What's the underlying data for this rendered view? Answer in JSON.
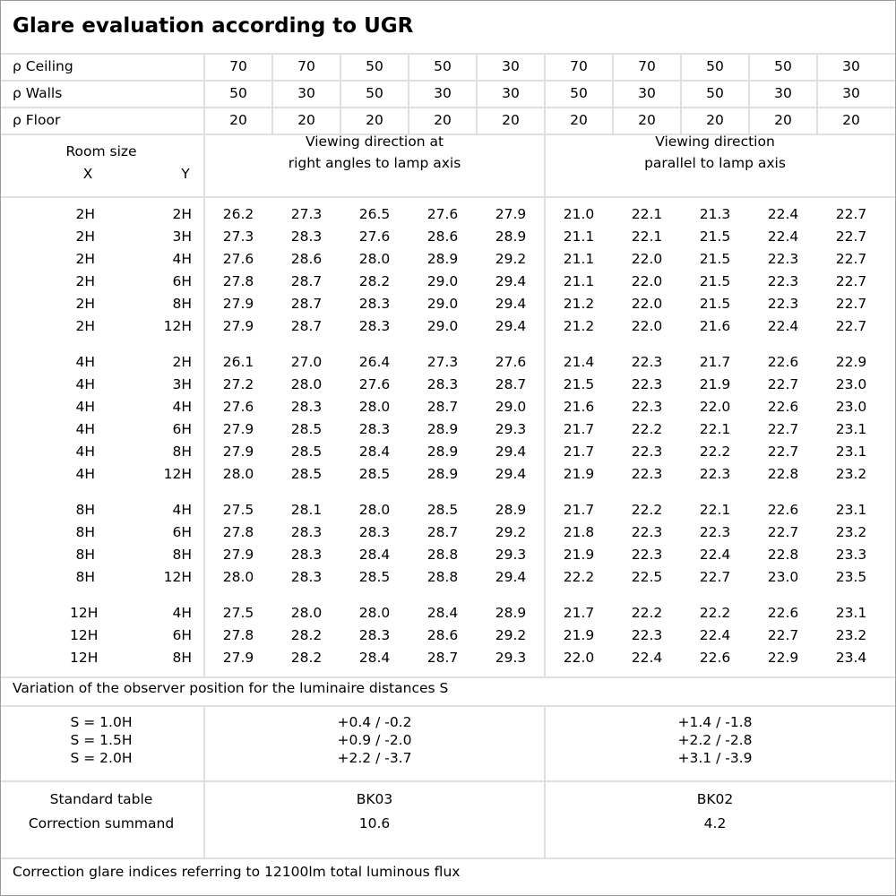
{
  "title": "Glare evaluation according to UGR",
  "reflectances": [
    {
      "label": "ρ Ceiling",
      "values": [
        "70",
        "70",
        "50",
        "50",
        "30",
        "70",
        "70",
        "50",
        "50",
        "30"
      ]
    },
    {
      "label": "ρ Walls",
      "values": [
        "50",
        "30",
        "50",
        "30",
        "30",
        "50",
        "30",
        "50",
        "30",
        "30"
      ]
    },
    {
      "label": "ρ Floor",
      "values": [
        "20",
        "20",
        "20",
        "20",
        "20",
        "20",
        "20",
        "20",
        "20",
        "20"
      ]
    }
  ],
  "header": {
    "room_size": "Room size",
    "x_label": "X",
    "y_label": "Y",
    "dir_right_1": "Viewing direction at",
    "dir_right_2": "right angles to lamp axis",
    "dir_parallel_1": "Viewing direction",
    "dir_parallel_2": "parallel to lamp axis"
  },
  "groups": [
    {
      "rows": [
        {
          "x": "2H",
          "y": "2H",
          "values": [
            "26.2",
            "27.3",
            "26.5",
            "27.6",
            "27.9",
            "21.0",
            "22.1",
            "21.3",
            "22.4",
            "22.7"
          ]
        },
        {
          "x": "2H",
          "y": "3H",
          "values": [
            "27.3",
            "28.3",
            "27.6",
            "28.6",
            "28.9",
            "21.1",
            "22.1",
            "21.5",
            "22.4",
            "22.7"
          ]
        },
        {
          "x": "2H",
          "y": "4H",
          "values": [
            "27.6",
            "28.6",
            "28.0",
            "28.9",
            "29.2",
            "21.1",
            "22.0",
            "21.5",
            "22.3",
            "22.7"
          ]
        },
        {
          "x": "2H",
          "y": "6H",
          "values": [
            "27.8",
            "28.7",
            "28.2",
            "29.0",
            "29.4",
            "21.1",
            "22.0",
            "21.5",
            "22.3",
            "22.7"
          ]
        },
        {
          "x": "2H",
          "y": "8H",
          "values": [
            "27.9",
            "28.7",
            "28.3",
            "29.0",
            "29.4",
            "21.2",
            "22.0",
            "21.5",
            "22.3",
            "22.7"
          ]
        },
        {
          "x": "2H",
          "y": "12H",
          "values": [
            "27.9",
            "28.7",
            "28.3",
            "29.0",
            "29.4",
            "21.2",
            "22.0",
            "21.6",
            "22.4",
            "22.7"
          ]
        }
      ]
    },
    {
      "rows": [
        {
          "x": "4H",
          "y": "2H",
          "values": [
            "26.1",
            "27.0",
            "26.4",
            "27.3",
            "27.6",
            "21.4",
            "22.3",
            "21.7",
            "22.6",
            "22.9"
          ]
        },
        {
          "x": "4H",
          "y": "3H",
          "values": [
            "27.2",
            "28.0",
            "27.6",
            "28.3",
            "28.7",
            "21.5",
            "22.3",
            "21.9",
            "22.7",
            "23.0"
          ]
        },
        {
          "x": "4H",
          "y": "4H",
          "values": [
            "27.6",
            "28.3",
            "28.0",
            "28.7",
            "29.0",
            "21.6",
            "22.3",
            "22.0",
            "22.6",
            "23.0"
          ]
        },
        {
          "x": "4H",
          "y": "6H",
          "values": [
            "27.9",
            "28.5",
            "28.3",
            "28.9",
            "29.3",
            "21.7",
            "22.2",
            "22.1",
            "22.7",
            "23.1"
          ]
        },
        {
          "x": "4H",
          "y": "8H",
          "values": [
            "27.9",
            "28.5",
            "28.4",
            "28.9",
            "29.4",
            "21.7",
            "22.3",
            "22.2",
            "22.7",
            "23.1"
          ]
        },
        {
          "x": "4H",
          "y": "12H",
          "values": [
            "28.0",
            "28.5",
            "28.5",
            "28.9",
            "29.4",
            "21.9",
            "22.3",
            "22.3",
            "22.8",
            "23.2"
          ]
        }
      ]
    },
    {
      "rows": [
        {
          "x": "8H",
          "y": "4H",
          "values": [
            "27.5",
            "28.1",
            "28.0",
            "28.5",
            "28.9",
            "21.7",
            "22.2",
            "22.1",
            "22.6",
            "23.1"
          ]
        },
        {
          "x": "8H",
          "y": "6H",
          "values": [
            "27.8",
            "28.3",
            "28.3",
            "28.7",
            "29.2",
            "21.8",
            "22.3",
            "22.3",
            "22.7",
            "23.2"
          ]
        },
        {
          "x": "8H",
          "y": "8H",
          "values": [
            "27.9",
            "28.3",
            "28.4",
            "28.8",
            "29.3",
            "21.9",
            "22.3",
            "22.4",
            "22.8",
            "23.3"
          ]
        },
        {
          "x": "8H",
          "y": "12H",
          "values": [
            "28.0",
            "28.3",
            "28.5",
            "28.8",
            "29.4",
            "22.2",
            "22.5",
            "22.7",
            "23.0",
            "23.5"
          ]
        }
      ]
    },
    {
      "rows": [
        {
          "x": "12H",
          "y": "4H",
          "values": [
            "27.5",
            "28.0",
            "28.0",
            "28.4",
            "28.9",
            "21.7",
            "22.2",
            "22.2",
            "22.6",
            "23.1"
          ]
        },
        {
          "x": "12H",
          "y": "6H",
          "values": [
            "27.8",
            "28.2",
            "28.3",
            "28.6",
            "29.2",
            "21.9",
            "22.3",
            "22.4",
            "22.7",
            "23.2"
          ]
        },
        {
          "x": "12H",
          "y": "8H",
          "values": [
            "27.9",
            "28.2",
            "28.4",
            "28.7",
            "29.3",
            "22.0",
            "22.4",
            "22.6",
            "22.9",
            "23.4"
          ]
        }
      ]
    }
  ],
  "variation": {
    "caption": "Variation of the observer position for the luminaire distances S",
    "rows": [
      {
        "label": "S = 1.0H",
        "right": "+0.4 / -0.2",
        "parallel": "+1.4 / -1.8"
      },
      {
        "label": "S = 1.5H",
        "right": "+0.9 / -2.0",
        "parallel": "+2.2 / -2.8"
      },
      {
        "label": "S = 2.0H",
        "right": "+2.2 / -3.7",
        "parallel": "+3.1 / -3.9"
      }
    ]
  },
  "standard": {
    "label": "Standard table",
    "right": "BK03",
    "parallel": "BK02"
  },
  "correction": {
    "label": "Correction summand",
    "right": "10.6",
    "parallel": "4.2"
  },
  "footer": "Correction glare indices referring to 12100lm total luminous flux"
}
